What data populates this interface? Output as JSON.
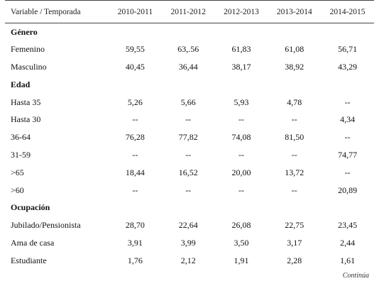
{
  "table": {
    "headers": [
      "Variable / Temporada",
      "2010-2011",
      "2011-2012",
      "2012-2013",
      "2013-2014",
      "2014-2015"
    ],
    "rows": [
      {
        "type": "section",
        "label": "Género",
        "values": []
      },
      {
        "type": "data",
        "label": "Femenino",
        "values": [
          "59,55",
          "63,.56",
          "61,83",
          "61,08",
          "56,71"
        ]
      },
      {
        "type": "data",
        "label": "Masculino",
        "values": [
          "40,45",
          "36,44",
          "38,17",
          "38,92",
          "43,29"
        ]
      },
      {
        "type": "section",
        "label": "Edad",
        "values": []
      },
      {
        "type": "data",
        "label": "Hasta 35",
        "values": [
          "5,26",
          "5,66",
          "5,93",
          "4,78",
          "--"
        ]
      },
      {
        "type": "data",
        "label": "Hasta 30",
        "values": [
          "--",
          "--",
          "--",
          "--",
          "4,34"
        ]
      },
      {
        "type": "data",
        "label": "36-64",
        "values": [
          "76,28",
          "77,82",
          "74,08",
          "81,50",
          "--"
        ]
      },
      {
        "type": "data",
        "label": "31-59",
        "values": [
          "--",
          "--",
          "--",
          "--",
          "74,77"
        ]
      },
      {
        "type": "data",
        "label": ">65",
        "values": [
          "18,44",
          "16,52",
          "20,00",
          "13,72",
          "--"
        ]
      },
      {
        "type": "data",
        "label": ">60",
        "values": [
          "--",
          "--",
          "--",
          "--",
          "20,89"
        ]
      },
      {
        "type": "section",
        "label": "Ocupación",
        "values": []
      },
      {
        "type": "data",
        "label": "Jubilado/Pensionista",
        "values": [
          "28,70",
          "22,64",
          "26,08",
          "22,75",
          "23,45"
        ]
      },
      {
        "type": "data",
        "label": "Ama de casa",
        "values": [
          "3,91",
          "3,99",
          "3,50",
          "3,17",
          "2,44"
        ]
      },
      {
        "type": "data",
        "label": "Estudiante",
        "values": [
          "1,76",
          "2,12",
          "1,91",
          "2,28",
          "1,61"
        ]
      }
    ]
  },
  "footer": {
    "continua": "Continúa"
  }
}
